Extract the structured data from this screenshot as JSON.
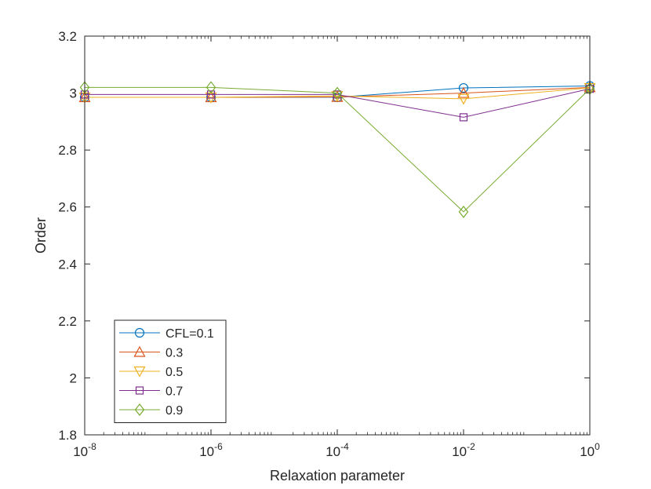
{
  "chart_data": {
    "type": "line",
    "xscale": "log",
    "x": [
      1e-08,
      1e-06,
      0.0001,
      0.01,
      1
    ],
    "xlim": [
      1e-08,
      1
    ],
    "ylim": [
      1.8,
      3.2
    ],
    "xlabel": "Relaxation parameter",
    "ylabel": "Order",
    "grid": false,
    "legend_position": "bottom-left",
    "x_ticks": [
      {
        "base": "10",
        "exp": "-8",
        "value": 1e-08
      },
      {
        "base": "10",
        "exp": "-6",
        "value": 1e-06
      },
      {
        "base": "10",
        "exp": "-4",
        "value": 0.0001
      },
      {
        "base": "10",
        "exp": "-2",
        "value": 0.01
      },
      {
        "base": "10",
        "exp": "0",
        "value": 1
      }
    ],
    "y_ticks": [
      {
        "label": "1.8",
        "value": 1.8
      },
      {
        "label": "2",
        "value": 2.0
      },
      {
        "label": "2.2",
        "value": 2.2
      },
      {
        "label": "2.4",
        "value": 2.4
      },
      {
        "label": "2.6",
        "value": 2.6
      },
      {
        "label": "2.8",
        "value": 2.8
      },
      {
        "label": "3",
        "value": 3.0
      },
      {
        "label": "3.2",
        "value": 3.2
      }
    ],
    "series": [
      {
        "name": "CFL=0.1",
        "color": "#0072BD",
        "marker": "circle",
        "values": [
          2.985,
          2.985,
          2.985,
          3.018,
          3.025
        ]
      },
      {
        "name": "0.3",
        "color": "#D95319",
        "marker": "triangle-up",
        "values": [
          2.985,
          2.985,
          2.986,
          3.0,
          3.02
        ]
      },
      {
        "name": "0.5",
        "color": "#EDB120",
        "marker": "triangle-down",
        "values": [
          2.985,
          2.985,
          2.99,
          2.98,
          3.018
        ]
      },
      {
        "name": "0.7",
        "color": "#7E2F8E",
        "marker": "square",
        "values": [
          2.995,
          2.995,
          2.995,
          2.915,
          3.015
        ]
      },
      {
        "name": "0.9",
        "color": "#77AC30",
        "marker": "diamond",
        "values": [
          3.02,
          3.02,
          3.0,
          2.583,
          3.015
        ]
      }
    ]
  }
}
